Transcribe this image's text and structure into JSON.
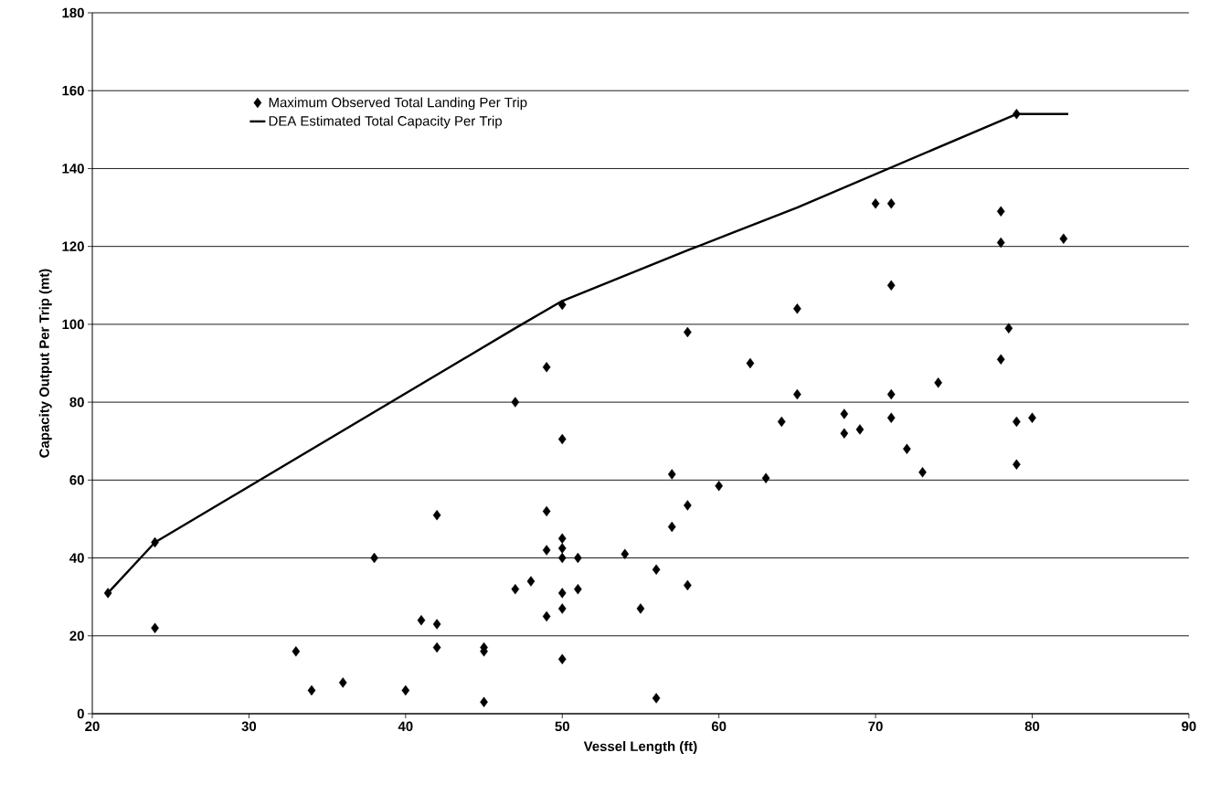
{
  "chart_data": {
    "type": "scatter",
    "xlabel": "Vessel Length (ft)",
    "ylabel": "Capacity Output Per Trip (mt)",
    "xlim": [
      20,
      90
    ],
    "xticks": [
      20,
      30,
      40,
      50,
      60,
      70,
      80,
      90
    ],
    "ylim": [
      0,
      180
    ],
    "yticks": [
      0,
      20,
      40,
      60,
      80,
      100,
      120,
      140,
      160,
      180
    ],
    "grid": "y",
    "legend": "top left",
    "series": [
      {
        "name": "Maximum Observed Total Landing Per Trip",
        "marker": "diamond",
        "color": "#000000",
        "x": [
          21,
          24,
          24,
          33,
          34,
          36,
          38,
          40,
          41,
          42,
          42,
          42,
          45,
          45,
          45,
          47,
          47,
          48,
          49,
          49,
          49,
          49,
          50,
          50,
          50,
          50,
          50,
          50,
          50,
          50,
          51,
          51,
          54,
          55,
          56,
          56,
          57,
          57,
          58,
          58,
          58,
          60,
          62,
          63,
          64,
          65,
          65,
          68,
          68,
          69,
          70,
          71,
          71,
          71,
          71,
          72,
          73,
          74,
          78,
          78,
          78,
          78.5,
          79,
          79,
          79,
          80,
          82
        ],
        "values": [
          31,
          44,
          22,
          16,
          6,
          8,
          40,
          6,
          24,
          23,
          17,
          51,
          17,
          16,
          3,
          80,
          32,
          34,
          89,
          52,
          42,
          25,
          105,
          70.5,
          45,
          42.5,
          40,
          31,
          27,
          14,
          40,
          32,
          41,
          27,
          37,
          4,
          61.5,
          48,
          98,
          53.5,
          33,
          58.5,
          90,
          60.5,
          75,
          104,
          82,
          77,
          72,
          73,
          131,
          131,
          110,
          82,
          76,
          68,
          62,
          85,
          129,
          121,
          91,
          99,
          154,
          75,
          64,
          76,
          122
        ]
      },
      {
        "name": "DEA Estimated Total Capacity Per Trip",
        "type": "line",
        "marker": "none",
        "line_style": "solid",
        "color": "#000000",
        "x": [
          21,
          24,
          47,
          50,
          58,
          65,
          79,
          82.3
        ],
        "values": [
          31,
          44,
          99,
          106,
          119,
          130,
          154,
          154
        ]
      }
    ]
  }
}
